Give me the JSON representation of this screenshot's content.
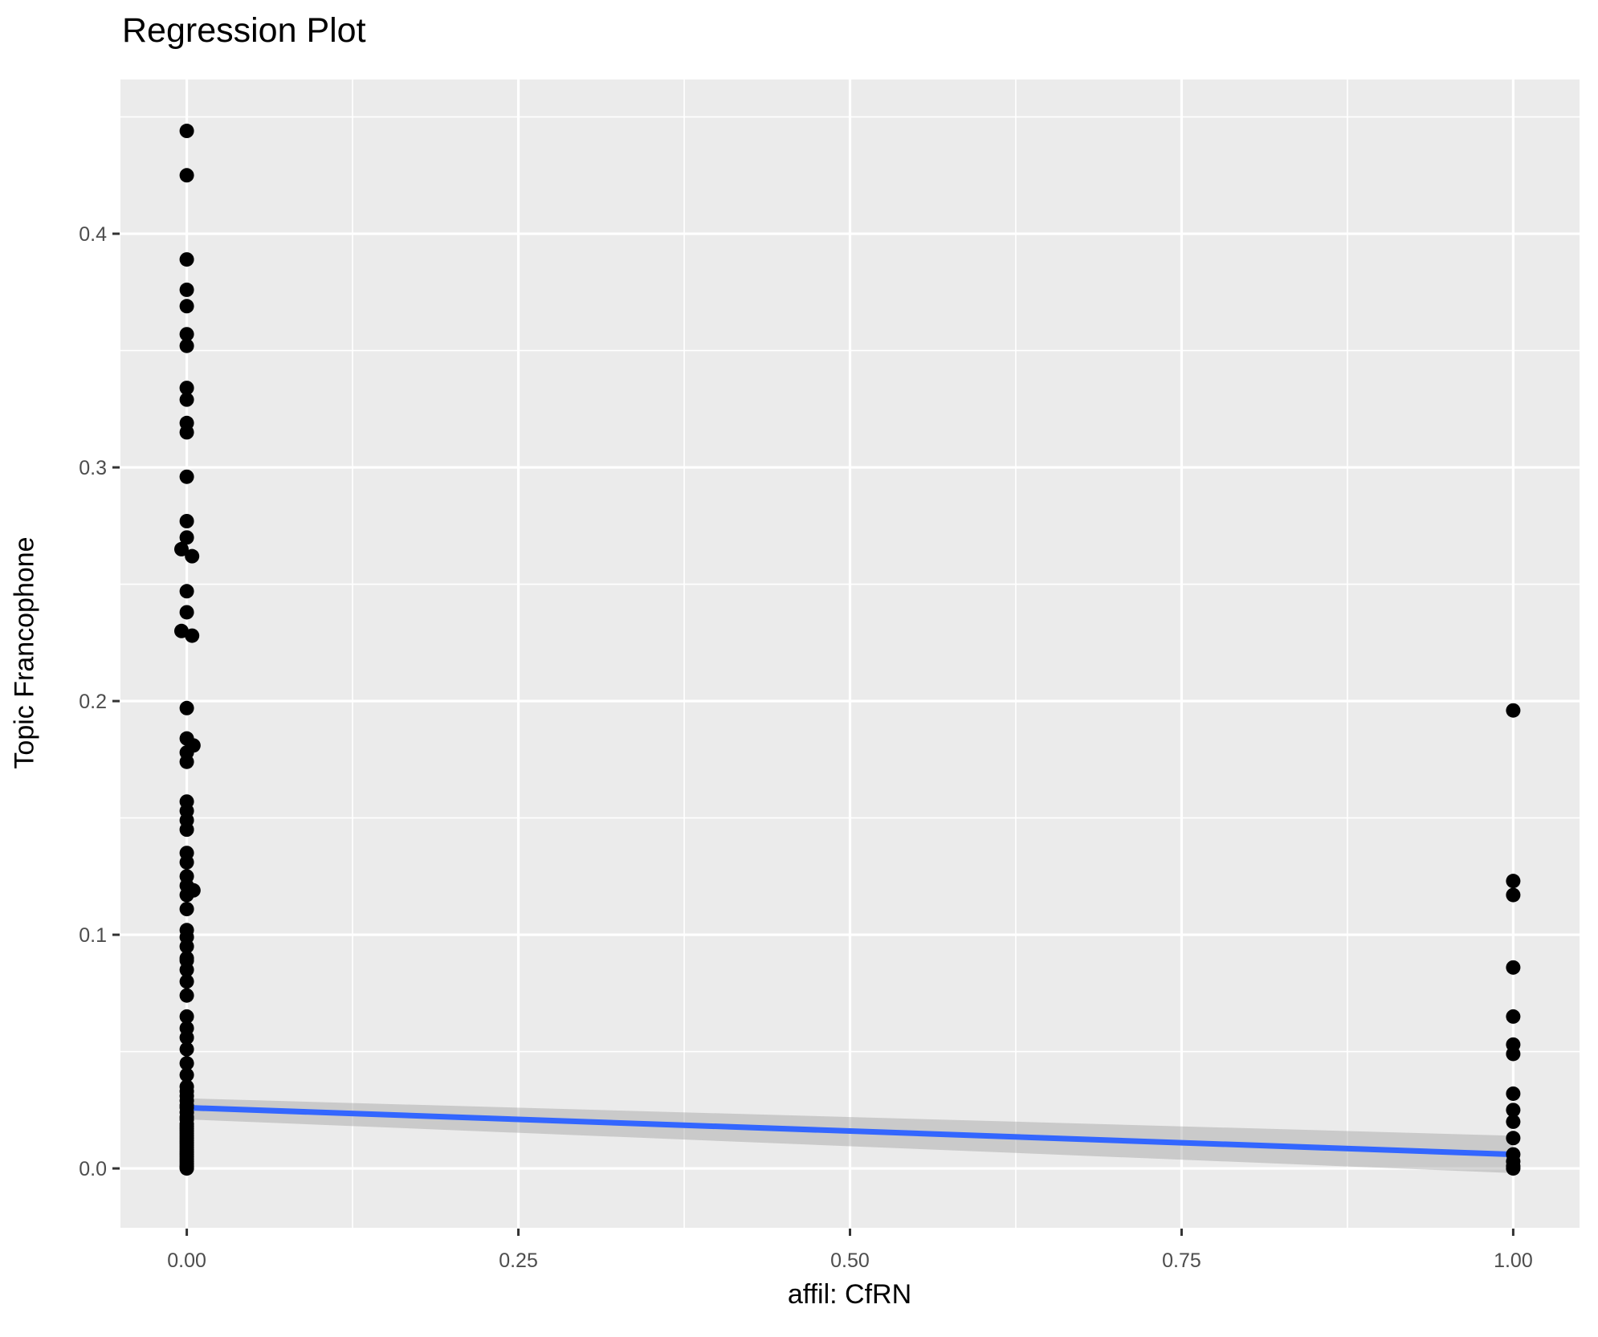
{
  "title": "Regression Plot",
  "axes": {
    "x_label": "affil: CfRN",
    "y_label": "Topic Francophone"
  },
  "chart_data": {
    "type": "scatter",
    "title": "Regression Plot",
    "xlabel": "affil: CfRN",
    "ylabel": "Topic Francophone",
    "xlim": [
      -0.05,
      1.05
    ],
    "ylim": [
      -0.0254,
      0.466
    ],
    "x_ticks": {
      "values": [
        0,
        0.25,
        0.5,
        0.75,
        1.0
      ],
      "labels": [
        "0.00",
        "0.25",
        "0.50",
        "0.75",
        "1.00"
      ]
    },
    "y_ticks": {
      "values": [
        0,
        0.1,
        0.2,
        0.3,
        0.4
      ],
      "labels": [
        "0.0",
        "0.1",
        "0.2",
        "0.3",
        "0.4"
      ]
    },
    "grid": {
      "major": true,
      "minor": true,
      "major_width": 3.2,
      "minor_width": 1.6
    },
    "style": {
      "panel_bg": "#EBEBEB",
      "grid_color": "#FFFFFF",
      "tick_color": "#333333",
      "tick_label_color": "#4D4D4D",
      "tick_label_size": 25,
      "point_color": "#000000",
      "point_radius": 9
    },
    "series": [
      {
        "name": "observations",
        "type": "scatter",
        "color": "#000000",
        "points": [
          [
            0,
            0.444
          ],
          [
            0,
            0.425
          ],
          [
            0,
            0.389
          ],
          [
            0,
            0.376
          ],
          [
            0,
            0.369
          ],
          [
            0,
            0.357
          ],
          [
            0,
            0.352
          ],
          [
            0,
            0.334
          ],
          [
            0,
            0.329
          ],
          [
            0,
            0.319
          ],
          [
            0,
            0.315
          ],
          [
            0,
            0.296
          ],
          [
            0,
            0.277
          ],
          [
            0,
            0.27
          ],
          [
            -0.004,
            0.265
          ],
          [
            0.004,
            0.262
          ],
          [
            0,
            0.247
          ],
          [
            0,
            0.238
          ],
          [
            -0.004,
            0.23
          ],
          [
            0.004,
            0.228
          ],
          [
            0,
            0.197
          ],
          [
            0,
            0.184
          ],
          [
            0.005,
            0.181
          ],
          [
            0,
            0.178
          ],
          [
            0,
            0.174
          ],
          [
            0,
            0.157
          ],
          [
            0,
            0.153
          ],
          [
            0,
            0.149
          ],
          [
            0,
            0.145
          ],
          [
            0,
            0.135
          ],
          [
            0,
            0.131
          ],
          [
            0,
            0.125
          ],
          [
            0,
            0.121
          ],
          [
            0.005,
            0.119
          ],
          [
            0,
            0.117
          ],
          [
            0,
            0.111
          ],
          [
            0,
            0.102
          ],
          [
            0,
            0.099
          ],
          [
            0,
            0.095
          ],
          [
            0,
            0.09
          ],
          [
            0,
            0.089
          ],
          [
            0,
            0.085
          ],
          [
            0,
            0.08
          ],
          [
            0,
            0.074
          ],
          [
            0,
            0.065
          ],
          [
            0,
            0.06
          ],
          [
            0,
            0.056
          ],
          [
            0,
            0.051
          ],
          [
            0,
            0.045
          ],
          [
            0,
            0.04
          ],
          [
            0,
            0.035
          ],
          [
            0,
            0.033
          ],
          [
            0,
            0.031
          ],
          [
            0,
            0.029
          ],
          [
            0,
            0.027
          ],
          [
            0,
            0.026
          ],
          [
            0,
            0.024
          ],
          [
            0,
            0.022
          ],
          [
            0,
            0.021
          ],
          [
            0,
            0.019
          ],
          [
            0,
            0.018
          ],
          [
            0,
            0.017
          ],
          [
            0,
            0.016
          ],
          [
            0,
            0.015
          ],
          [
            0,
            0.014
          ],
          [
            0,
            0.013
          ],
          [
            0,
            0.012
          ],
          [
            0,
            0.011
          ],
          [
            0,
            0.01
          ],
          [
            0,
            0.009
          ],
          [
            0,
            0.008
          ],
          [
            0,
            0.007
          ],
          [
            0,
            0.006
          ],
          [
            0,
            0.005
          ],
          [
            0,
            0.004
          ],
          [
            0,
            0.003
          ],
          [
            0,
            0.002
          ],
          [
            0,
            0.001
          ],
          [
            0,
            0.0005
          ],
          [
            0,
            0
          ],
          [
            1,
            0.196
          ],
          [
            1,
            0.123
          ],
          [
            1,
            0.117
          ],
          [
            1,
            0.086
          ],
          [
            1,
            0.065
          ],
          [
            1,
            0.053
          ],
          [
            1,
            0.049
          ],
          [
            1,
            0.032
          ],
          [
            1,
            0.025
          ],
          [
            1,
            0.02
          ],
          [
            1,
            0.013
          ],
          [
            1,
            0.006
          ],
          [
            1,
            0.003
          ],
          [
            1,
            0.001
          ],
          [
            1,
            0
          ]
        ]
      },
      {
        "name": "linear_fit",
        "type": "line_with_ci",
        "color": "#3366FF",
        "line_width": 7,
        "x": [
          0,
          1
        ],
        "fit": [
          0.026,
          0.006
        ],
        "ci_upper": [
          0.03,
          0.014
        ],
        "ci_lower": [
          0.021,
          -0.002
        ],
        "ci_color": "#999999",
        "ci_opacity": 0.4
      }
    ]
  }
}
